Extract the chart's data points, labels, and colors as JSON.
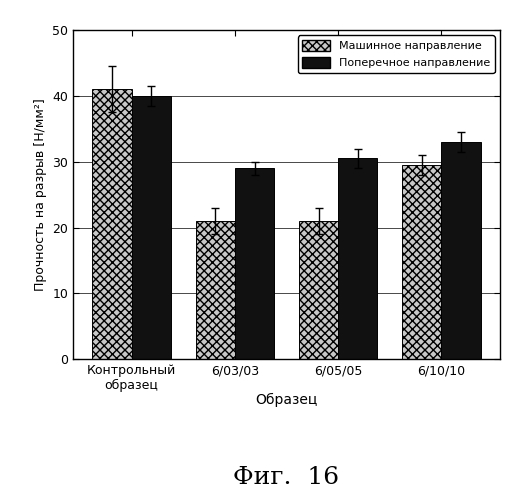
{
  "categories": [
    "Контрольный\nобразец",
    "6/03/03",
    "6/05/05",
    "6/10/10"
  ],
  "machine_values": [
    41.0,
    21.0,
    21.0,
    29.5
  ],
  "cross_values": [
    40.0,
    29.0,
    30.5,
    33.0
  ],
  "machine_errors": [
    3.5,
    2.0,
    2.0,
    1.5
  ],
  "cross_errors": [
    1.5,
    1.0,
    1.5,
    1.5
  ],
  "ylabel": "Прочность на разрыв [Н/мм²]",
  "xlabel": "Образец",
  "fig_label": "Фиг.  16",
  "legend_machine": "Машинное направление",
  "legend_cross": "Поперечное направление",
  "ylim": [
    0,
    50
  ],
  "yticks": [
    0,
    10,
    20,
    30,
    40,
    50
  ],
  "bar_width": 0.38,
  "figsize": [
    5.21,
    4.99
  ],
  "dpi": 100
}
